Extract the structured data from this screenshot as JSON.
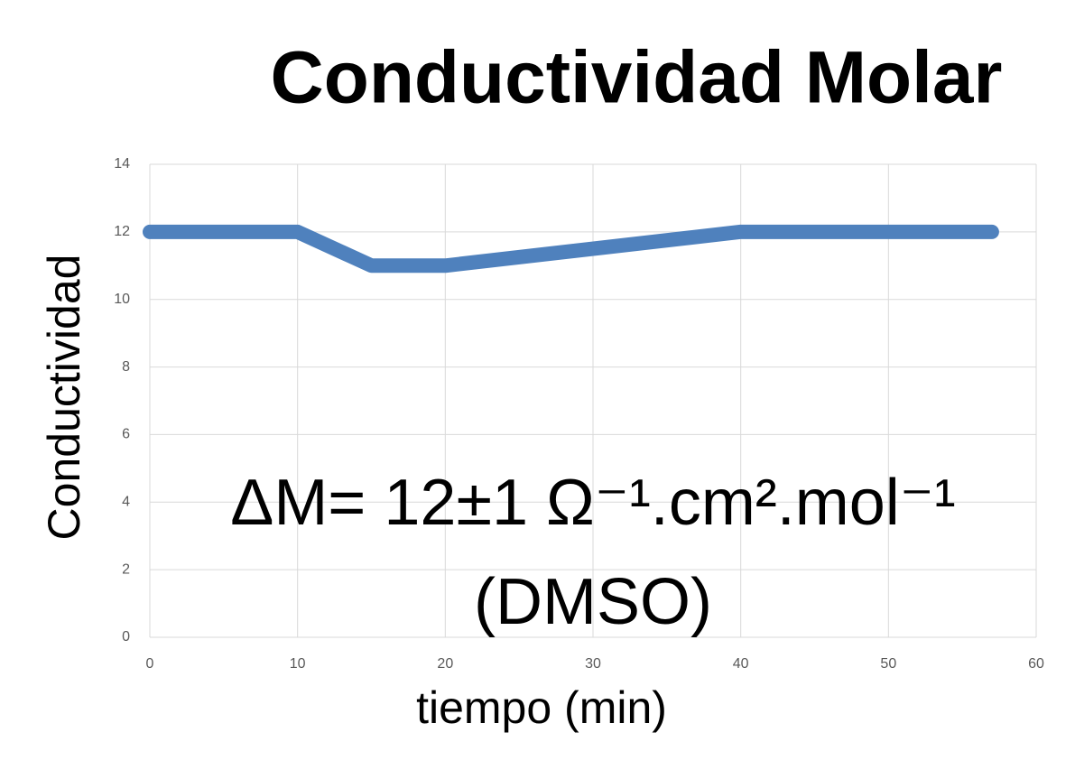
{
  "chart_data": {
    "type": "line",
    "title": "Conductividad Molar",
    "xlabel": "tiempo (min)",
    "ylabel": "Conductividad",
    "annotations": [
      "ΔM= 12±1 Ω⁻¹.cm².mol⁻¹",
      "(DMSO)"
    ],
    "x": [
      0,
      10,
      15,
      20,
      40,
      57
    ],
    "series": [
      {
        "name": "Conductividad",
        "color": "#4f81bd",
        "values": [
          12,
          12,
          11,
          11,
          12,
          12
        ]
      }
    ],
    "xlim": [
      0,
      60
    ],
    "xticks": [
      0,
      10,
      20,
      30,
      40,
      50,
      60
    ],
    "ylim": [
      0,
      14
    ],
    "yticks": [
      0,
      2,
      4,
      6,
      8,
      10,
      12,
      14
    ],
    "grid": true,
    "legend": false
  }
}
